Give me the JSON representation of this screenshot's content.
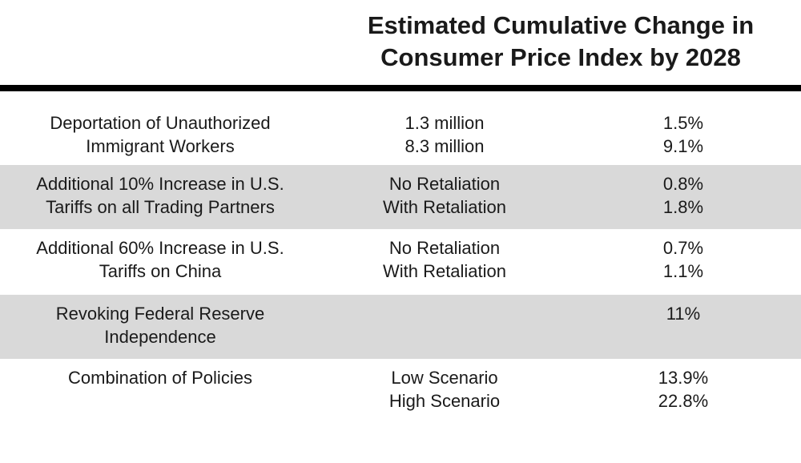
{
  "chart_data": {
    "type": "table",
    "title": [
      "Estimated Cumulative Change in",
      "Consumer Price Index by 2028"
    ],
    "rows": [
      {
        "policy": [
          "Deportation of Unauthorized",
          "Immigrant Workers"
        ],
        "scenarios": [
          "1.3 million",
          "8.3 million"
        ],
        "values": [
          "1.5%",
          "9.1%"
        ],
        "shaded": false
      },
      {
        "policy": [
          "Additional 10% Increase in U.S.",
          "Tariffs on all Trading Partners"
        ],
        "scenarios": [
          "No Retaliation",
          "With Retaliation"
        ],
        "values": [
          "0.8%",
          "1.8%"
        ],
        "shaded": true
      },
      {
        "policy": [
          "Additional 60% Increase in U.S.",
          "Tariffs on China"
        ],
        "scenarios": [
          "No Retaliation",
          "With Retaliation"
        ],
        "values": [
          "0.7%",
          "1.1%"
        ],
        "shaded": false
      },
      {
        "policy": [
          "Revoking Federal Reserve",
          "Independence"
        ],
        "scenarios": [],
        "values": [
          "11%"
        ],
        "shaded": true
      },
      {
        "policy": [
          "Combination of Policies"
        ],
        "scenarios": [
          "Low Scenario",
          "High Scenario"
        ],
        "values": [
          "13.9%",
          "22.8%"
        ],
        "shaded": false
      }
    ]
  }
}
